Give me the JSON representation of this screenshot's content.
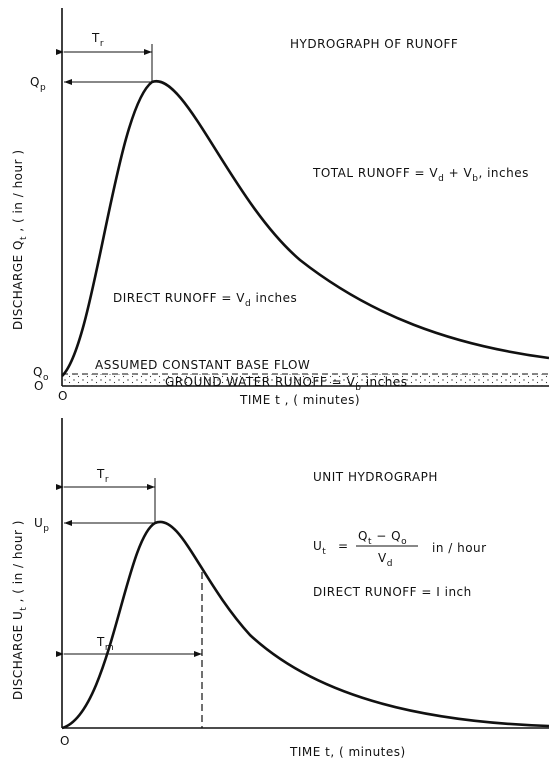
{
  "top": {
    "title": "HYDROGRAPH OF RUNOFF",
    "tr": [
      "T",
      "r"
    ],
    "qp": [
      "Q",
      "p"
    ],
    "qo": [
      "Q",
      "o"
    ],
    "zero_y": "O",
    "zero_x": "O",
    "total_runoff": [
      "TOTAL RUNOFF = V",
      "d",
      " + V",
      "b",
      ", inches"
    ],
    "direct_runoff": [
      "DIRECT RUNOFF = V",
      "d",
      "  inches"
    ],
    "base_flow": "ASSUMED CONSTANT BASE FLOW",
    "ground_water": [
      "GROUND WATER RUNOFF = V",
      "b",
      " inches"
    ],
    "y_label": [
      "DISCHARGE Q",
      "t",
      " , ( in / hour )"
    ],
    "x_label": "TIME t , ( minutes)"
  },
  "bottom": {
    "title": "UNIT HYDROGRAPH",
    "tr": [
      "T",
      "r"
    ],
    "tm": [
      "T",
      "m"
    ],
    "up": [
      "U",
      "p"
    ],
    "zero_x": "O",
    "ut": [
      "U",
      "t"
    ],
    "equals": "=",
    "numerator": [
      "Q",
      "t",
      " − Q",
      "o"
    ],
    "denominator": [
      "V",
      "d"
    ],
    "unit": "in / hour",
    "direct_runoff": "DIRECT RUNOFF = I inch",
    "y_label": [
      "DISCHARGE U",
      "t",
      " , ( in / hour )"
    ],
    "x_label": "TIME t, ( minutes)"
  }
}
